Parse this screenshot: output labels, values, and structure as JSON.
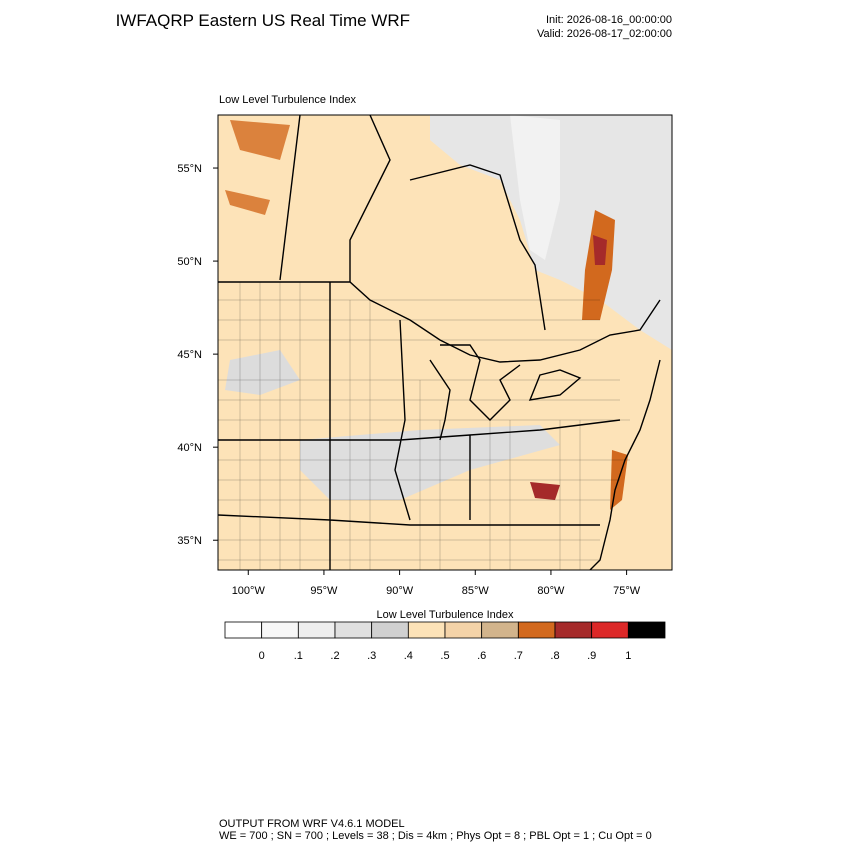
{
  "header": {
    "title": "IWFAQRP Eastern US Real Time WRF",
    "init": "Init: 2026-08-16_00:00:00",
    "valid": "Valid: 2026-08-17_02:00:00"
  },
  "map": {
    "title": "Low Level Turbulence Index",
    "xlim": [
      -102,
      -72
    ],
    "ylim": [
      33.4,
      57.85
    ],
    "xticks": [
      {
        "value": -100,
        "label": "100°W"
      },
      {
        "value": -95,
        "label": "95°W"
      },
      {
        "value": -90,
        "label": "90°W"
      },
      {
        "value": -85,
        "label": "85°W"
      },
      {
        "value": -80,
        "label": "80°W"
      },
      {
        "value": -75,
        "label": "75°W"
      }
    ],
    "yticks": [
      {
        "value": 55,
        "label": "55°N"
      },
      {
        "value": 50,
        "label": "50°N"
      },
      {
        "value": 45,
        "label": "45°N"
      },
      {
        "value": 40,
        "label": "40°N"
      },
      {
        "value": 35,
        "label": "35°N"
      }
    ]
  },
  "colorbar": {
    "title": "Low Level Turbulence Index",
    "colors": [
      "#ffffff",
      "#f7f7f7",
      "#eeeeee",
      "#e0e0e0",
      "#d0d0d0",
      "#fde3b8",
      "#f4d3a8",
      "#d2b48c",
      "#d2691e",
      "#a52a2a",
      "#dc2828",
      "#000000"
    ],
    "ticks": [
      0,
      {
        "value": 0.1,
        "label": ".1"
      },
      {
        "value": 0.2,
        "label": ".2"
      },
      {
        "value": 0.3,
        "label": ".3"
      },
      {
        "value": 0.4,
        "label": ".4"
      },
      {
        "value": 0.5,
        "label": ".5"
      },
      {
        "value": 0.6,
        "label": ".6"
      },
      {
        "value": 0.7,
        "label": ".7"
      },
      {
        "value": 0.8,
        "label": ".8"
      },
      {
        "value": 0.9,
        "label": ".9"
      },
      1
    ]
  },
  "footer": {
    "line1": "OUTPUT FROM WRF V4.6.1 MODEL",
    "line2": "WE = 700 ; SN = 700 ; Levels = 38 ; Dis = 4km ; Phys Opt = 8 ; PBL Opt = 1 ; Cu Opt = 0"
  }
}
